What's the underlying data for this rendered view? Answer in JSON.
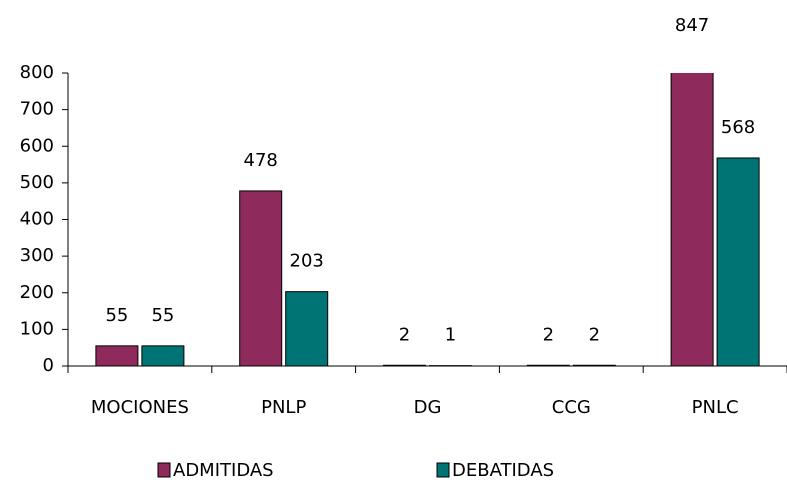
{
  "chart_data": {
    "type": "bar",
    "categories": [
      "MOCIONES",
      "PNLP",
      "DG",
      "CCG",
      "PNLC"
    ],
    "series": [
      {
        "name": "ADMITIDAS",
        "color": "#8e2a5c",
        "values": [
          55,
          478,
          2,
          2,
          847
        ]
      },
      {
        "name": "DEBATIDAS",
        "color": "#007474",
        "values": [
          55,
          203,
          1,
          2,
          568
        ]
      }
    ],
    "ylim": [
      0,
      800
    ],
    "yticks": [
      0,
      100,
      200,
      300,
      400,
      500,
      600,
      700,
      800
    ],
    "legend": "bottom",
    "value_labels_shown": true
  }
}
